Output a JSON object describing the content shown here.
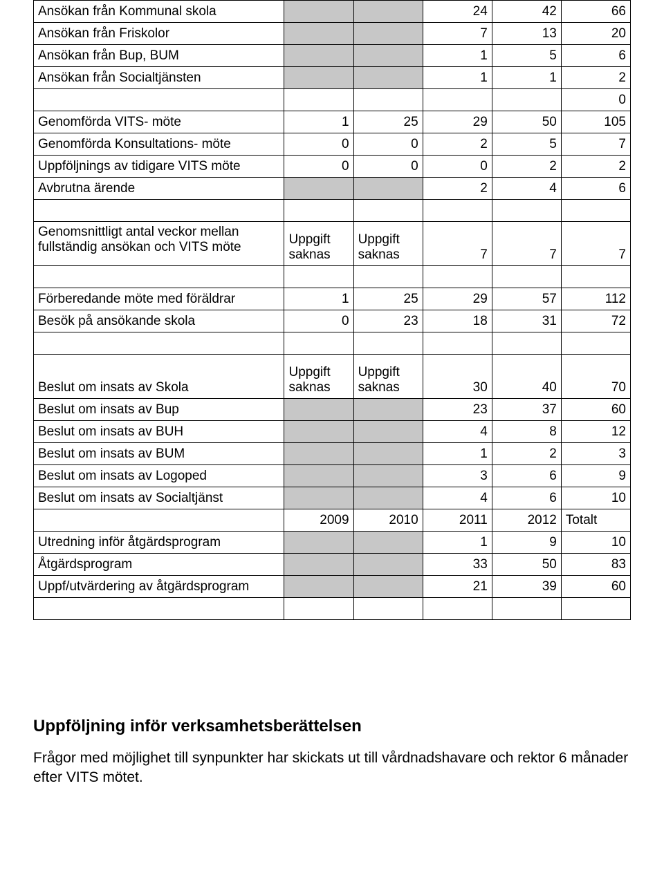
{
  "rows": [
    {
      "label": "Ansökan från Kommunal skola",
      "cells": [
        {
          "shaded": true
        },
        {
          "shaded": true
        },
        {
          "v": "24"
        },
        {
          "v": "42"
        },
        {
          "v": "66"
        }
      ]
    },
    {
      "label": "Ansökan från Friskolor",
      "cells": [
        {
          "shaded": true
        },
        {
          "shaded": true
        },
        {
          "v": "7"
        },
        {
          "v": "13"
        },
        {
          "v": "20"
        }
      ]
    },
    {
      "label": "Ansökan från Bup, BUM",
      "cells": [
        {
          "shaded": true
        },
        {
          "shaded": true
        },
        {
          "v": "1"
        },
        {
          "v": "5"
        },
        {
          "v": "6"
        }
      ]
    },
    {
      "label": "Ansökan från Socialtjänsten",
      "cells": [
        {
          "shaded": true
        },
        {
          "shaded": true
        },
        {
          "v": "1"
        },
        {
          "v": "1"
        },
        {
          "v": "2"
        }
      ]
    },
    {
      "label": "",
      "cells": [
        {},
        {},
        {},
        {},
        {
          "v": "0"
        }
      ]
    },
    {
      "label": "Genomförda VITS- möte",
      "cells": [
        {
          "v": "1"
        },
        {
          "v": "25"
        },
        {
          "v": "29"
        },
        {
          "v": "50"
        },
        {
          "v": "105"
        }
      ]
    },
    {
      "label": "Genomförda Konsultations- möte",
      "cells": [
        {
          "v": "0"
        },
        {
          "v": "0"
        },
        {
          "v": "2"
        },
        {
          "v": "5"
        },
        {
          "v": "7"
        }
      ]
    },
    {
      "label": "Uppföljnings av tidigare VITS möte",
      "cells": [
        {
          "v": "0"
        },
        {
          "v": "0"
        },
        {
          "v": "0"
        },
        {
          "v": "2"
        },
        {
          "v": "2"
        }
      ]
    },
    {
      "label": "Avbrutna ärende",
      "cells": [
        {
          "shaded": true
        },
        {
          "shaded": true
        },
        {
          "v": "2"
        },
        {
          "v": "4"
        },
        {
          "v": "6"
        }
      ]
    },
    {
      "label": "",
      "cells": [
        {},
        {},
        {},
        {},
        {}
      ]
    },
    {
      "label": "Genomsnittligt antal veckor mellan fullständig ansökan och VITS möte",
      "tall": true,
      "cells": [
        {
          "v": "Uppgift saknas",
          "txt": true
        },
        {
          "v": "Uppgift saknas",
          "txt": true
        },
        {
          "v": "7"
        },
        {
          "v": "7"
        },
        {
          "v": "7"
        }
      ]
    },
    {
      "label": "",
      "cells": [
        {},
        {},
        {},
        {},
        {}
      ]
    },
    {
      "label": "Förberedande möte med föräldrar",
      "cells": [
        {
          "v": "1"
        },
        {
          "v": "25"
        },
        {
          "v": "29"
        },
        {
          "v": "57"
        },
        {
          "v": "112"
        }
      ]
    },
    {
      "label": "Besök på ansökande skola",
      "cells": [
        {
          "v": "0"
        },
        {
          "v": "23"
        },
        {
          "v": "18"
        },
        {
          "v": "31"
        },
        {
          "v": "72"
        }
      ]
    },
    {
      "label": "",
      "cells": [
        {},
        {},
        {},
        {},
        {}
      ]
    },
    {
      "label": "Beslut om insats av Skola",
      "tall": true,
      "labelBottom": true,
      "cells": [
        {
          "v": "Uppgift saknas",
          "txt": true
        },
        {
          "v": "Uppgift saknas",
          "txt": true
        },
        {
          "v": "30"
        },
        {
          "v": "40"
        },
        {
          "v": "70"
        }
      ]
    },
    {
      "label": "Beslut om insats av Bup",
      "cells": [
        {
          "shaded": true
        },
        {
          "shaded": true
        },
        {
          "v": "23"
        },
        {
          "v": "37"
        },
        {
          "v": "60"
        }
      ]
    },
    {
      "label": "Beslut om insats av BUH",
      "cells": [
        {
          "shaded": true
        },
        {
          "shaded": true
        },
        {
          "v": "4"
        },
        {
          "v": "8"
        },
        {
          "v": "12"
        }
      ]
    },
    {
      "label": "Beslut om insats av BUM",
      "cells": [
        {
          "shaded": true
        },
        {
          "shaded": true
        },
        {
          "v": "1"
        },
        {
          "v": "2"
        },
        {
          "v": "3"
        }
      ]
    },
    {
      "label": "Beslut om insats av Logoped",
      "cells": [
        {
          "shaded": true
        },
        {
          "shaded": true
        },
        {
          "v": "3"
        },
        {
          "v": "6"
        },
        {
          "v": "9"
        }
      ]
    },
    {
      "label": "Beslut om insats av Socialtjänst",
      "cells": [
        {
          "shaded": true
        },
        {
          "shaded": true
        },
        {
          "v": "4"
        },
        {
          "v": "6"
        },
        {
          "v": "10"
        }
      ]
    },
    {
      "label": "",
      "cells": [
        {
          "v": "2009"
        },
        {
          "v": "2010"
        },
        {
          "v": "2011"
        },
        {
          "v": "2012"
        },
        {
          "v": "Totalt",
          "txt": true
        }
      ]
    },
    {
      "label": "Utredning inför åtgärdsprogram",
      "cells": [
        {
          "shaded": true
        },
        {
          "shaded": true
        },
        {
          "v": "1"
        },
        {
          "v": "9"
        },
        {
          "v": "10"
        }
      ]
    },
    {
      "label": "Åtgärdsprogram",
      "cells": [
        {
          "shaded": true
        },
        {
          "shaded": true
        },
        {
          "v": "33"
        },
        {
          "v": "50"
        },
        {
          "v": "83"
        }
      ]
    },
    {
      "label": "Uppf/utvärdering av åtgärdsprogram",
      "cells": [
        {
          "shaded": true
        },
        {
          "shaded": true
        },
        {
          "v": "21"
        },
        {
          "v": "39"
        },
        {
          "v": "60"
        }
      ]
    },
    {
      "label": "",
      "cells": [
        {},
        {},
        {},
        {},
        {}
      ]
    }
  ],
  "section_heading": "Uppföljning inför verksamhetsberättelsen",
  "body_text": "Frågor med möjlighet till synpunkter har skickats ut till vårdnadshavare och rektor 6 månader efter VITS mötet."
}
